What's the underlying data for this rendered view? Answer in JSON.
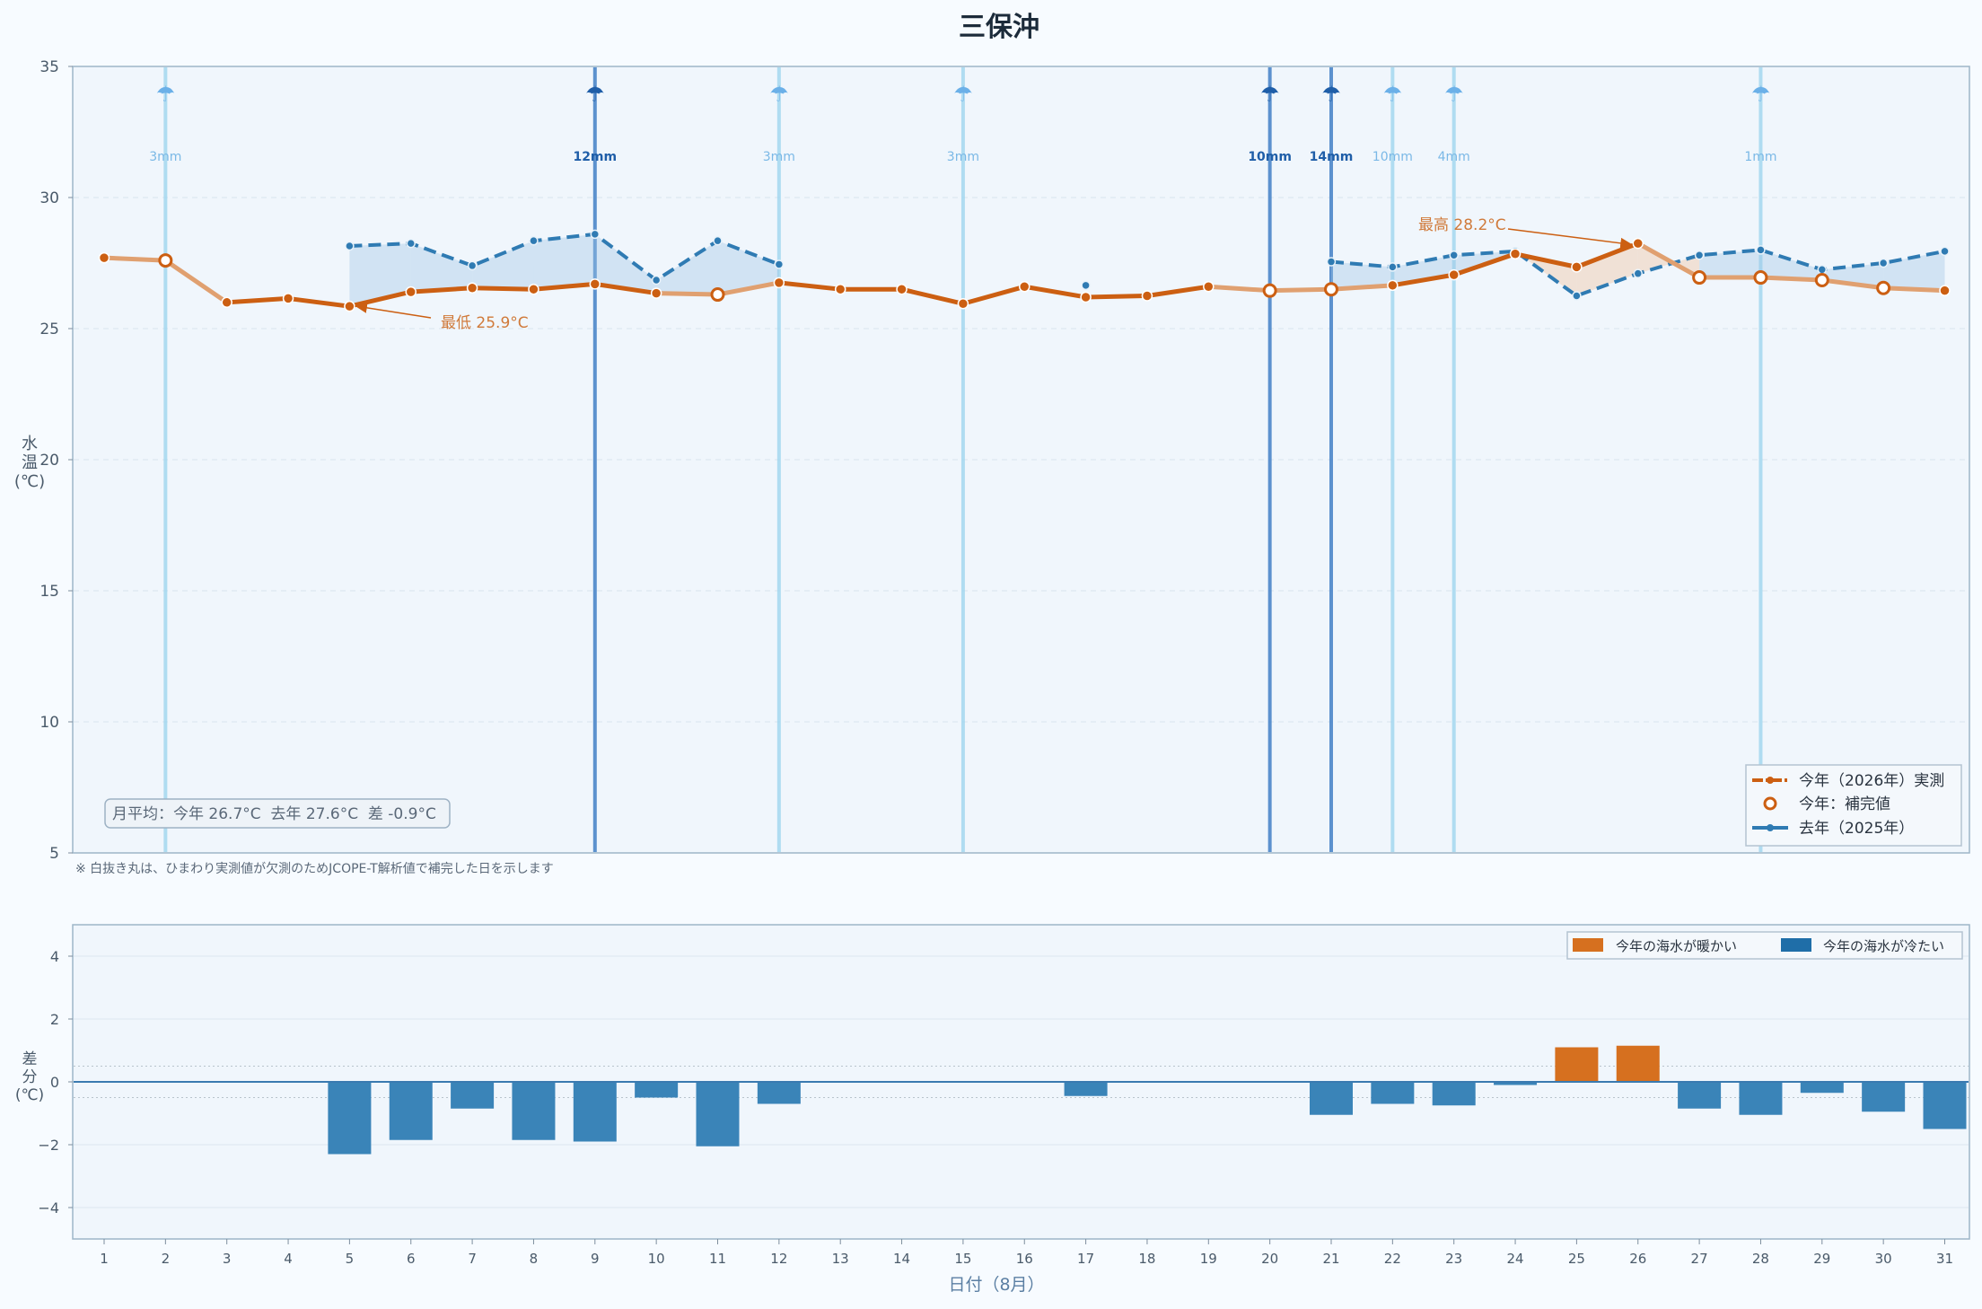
{
  "title": "三保沖",
  "note": "※ 白抜き丸は、ひまわり実測値が欠測のためJCOPE-T解析値で補完した日を示します",
  "monthly_summary": "月平均：今年 26.7°C  去年 27.6°C  差 -0.9°C",
  "colors": {
    "this_year": "#cc5f12",
    "last_year": "#2f7bb3",
    "rain_light": "#9ad3ee",
    "rain_heavy": "#4b86c9",
    "warm_bar": "#d6701f",
    "cold_bar": "#3a84b8",
    "panel_bg": "#f0f6fc",
    "axis": "#9eb6c8"
  },
  "chart_data": [
    {
      "type": "line",
      "title": "三保沖",
      "ylabel": "水温(℃)",
      "ylim": [
        5,
        35
      ],
      "yticks": [
        5,
        10,
        15,
        20,
        25,
        30,
        35
      ],
      "x": [
        1,
        2,
        3,
        4,
        5,
        6,
        7,
        8,
        9,
        10,
        11,
        12,
        13,
        14,
        15,
        16,
        17,
        18,
        19,
        20,
        21,
        22,
        23,
        24,
        25,
        26,
        27,
        28,
        29,
        30,
        31
      ],
      "series": [
        {
          "name": "今年（2026年）実測",
          "values": [
            27.7,
            27.6,
            26.0,
            26.15,
            25.85,
            26.4,
            26.55,
            26.5,
            26.7,
            26.35,
            26.3,
            26.75,
            26.5,
            26.5,
            25.95,
            26.6,
            26.2,
            26.25,
            26.6,
            26.45,
            26.5,
            26.65,
            27.05,
            27.85,
            27.35,
            28.25,
            26.95,
            26.95,
            26.85,
            26.55,
            26.45
          ],
          "imputed_days": [
            2,
            11,
            20,
            21,
            27,
            28,
            29,
            30
          ]
        },
        {
          "name": "去年（2025年）",
          "values": [
            null,
            null,
            null,
            null,
            28.15,
            28.25,
            27.4,
            28.35,
            28.6,
            26.85,
            28.35,
            27.45,
            null,
            null,
            null,
            null,
            26.65,
            null,
            null,
            null,
            27.55,
            27.35,
            27.8,
            27.95,
            26.25,
            27.1,
            27.8,
            28.0,
            27.25,
            27.5,
            27.95
          ]
        }
      ],
      "legend": [
        "今年（2026年）実測",
        "今年：補完値",
        "去年（2025年）"
      ],
      "legend_position": "bottom-right",
      "annotations": [
        {
          "text": "最低 25.9°C",
          "x": 5,
          "y": 25.9
        },
        {
          "text": "最高 28.2°C",
          "x": 26,
          "y": 28.2
        }
      ],
      "rain": [
        {
          "day": 2,
          "amount": "3mm",
          "heavy": false
        },
        {
          "day": 9,
          "amount": "12mm",
          "heavy": true
        },
        {
          "day": 12,
          "amount": "3mm",
          "heavy": false
        },
        {
          "day": 15,
          "amount": "3mm",
          "heavy": false
        },
        {
          "day": 20,
          "amount": "10mm",
          "heavy": true
        },
        {
          "day": 21,
          "amount": "14mm",
          "heavy": true
        },
        {
          "day": 22,
          "amount": "10mm",
          "heavy": false
        },
        {
          "day": 23,
          "amount": "4mm",
          "heavy": false
        },
        {
          "day": 28,
          "amount": "1mm",
          "heavy": false
        }
      ],
      "grid": true
    },
    {
      "type": "bar",
      "ylabel": "差分(℃)",
      "xlabel": "日付（8月）",
      "ylim": [
        -5,
        5
      ],
      "yticks": [
        -4,
        -2,
        0,
        2,
        4
      ],
      "categories": [
        "1",
        "2",
        "3",
        "4",
        "5",
        "6",
        "7",
        "8",
        "9",
        "10",
        "11",
        "12",
        "13",
        "14",
        "15",
        "16",
        "17",
        "18",
        "19",
        "20",
        "21",
        "22",
        "23",
        "24",
        "25",
        "26",
        "27",
        "28",
        "29",
        "30",
        "31"
      ],
      "values": [
        null,
        null,
        null,
        null,
        -2.3,
        -1.85,
        -0.85,
        -1.85,
        -1.9,
        -0.5,
        -2.05,
        -0.7,
        null,
        null,
        null,
        null,
        -0.45,
        null,
        null,
        null,
        -1.05,
        -0.7,
        -0.75,
        -0.1,
        1.1,
        1.15,
        -0.85,
        -1.05,
        -0.35,
        -0.95,
        -1.5
      ],
      "legend": [
        "今年の海水が暖かい",
        "今年の海水が冷たい"
      ],
      "legend_position": "top-right",
      "grid": true
    }
  ]
}
